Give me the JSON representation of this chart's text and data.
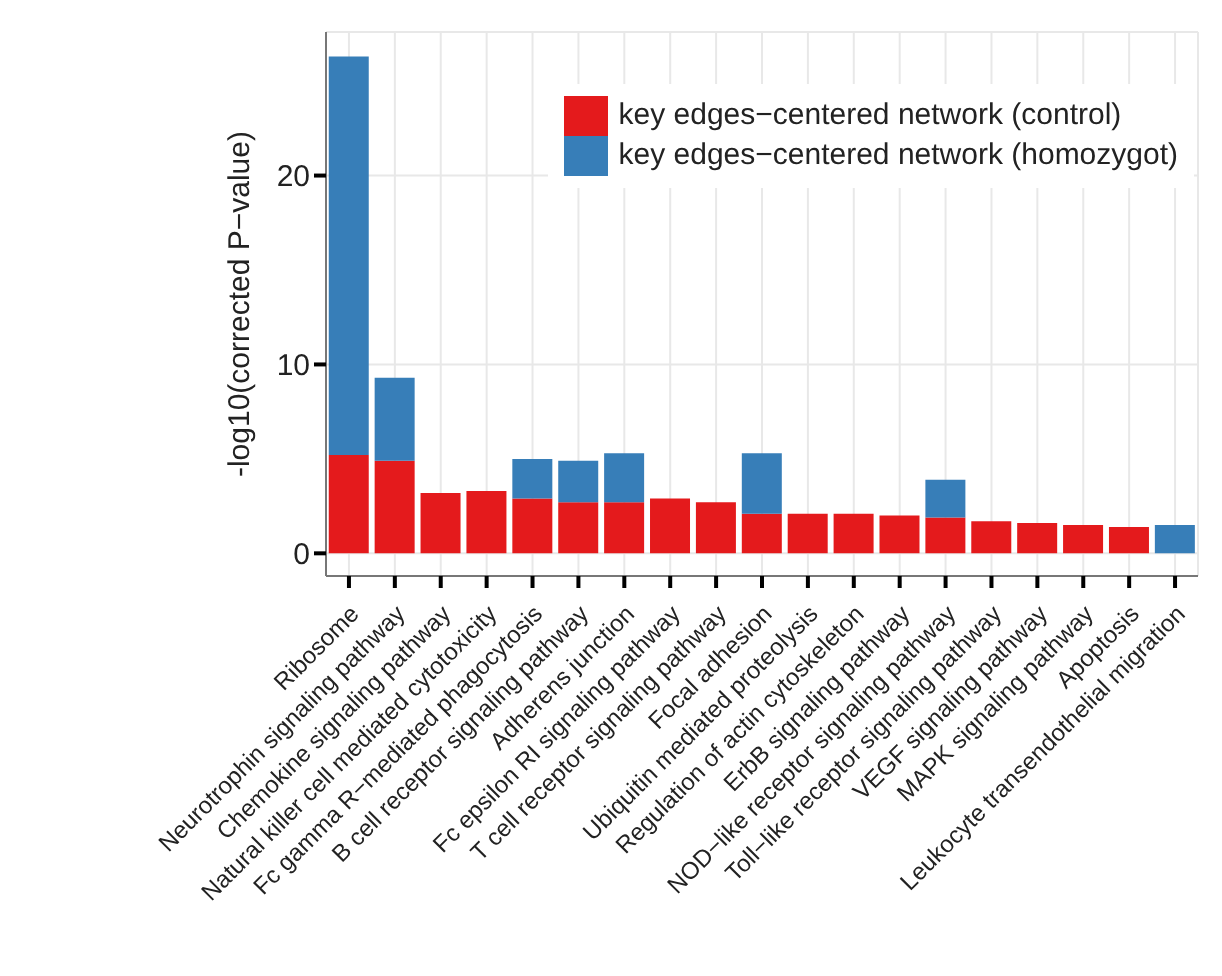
{
  "chart_data": {
    "type": "bar",
    "ylabel": "-log10(corrected P−value)",
    "categories": [
      "Ribosome",
      "Neurotrophin signaling pathway",
      "Chemokine signaling pathway",
      "Natural killer cell mediated cytotoxicity",
      "Fc gamma R−mediated phagocytosis",
      "B cell receptor signaling pathway",
      "Adherens junction",
      "Fc epsilon RI signaling pathway",
      "T cell receptor signaling pathway",
      "Focal adhesion",
      "Ubiquitin mediated proteolysis",
      "Regulation of actin cytoskeleton",
      "ErbB signaling pathway",
      "NOD−like receptor signaling pathway",
      "Toll−like receptor signaling pathway",
      "VEGF signaling pathway",
      "MAPK signaling pathway",
      "Apoptosis",
      "Leukocyte transendothelial migration"
    ],
    "series": [
      {
        "name": "key edges−centered network (control)",
        "color": "#e41a1c",
        "values": [
          5.2,
          4.9,
          3.2,
          3.3,
          2.9,
          2.7,
          2.7,
          2.9,
          2.7,
          2.1,
          2.1,
          2.1,
          2.0,
          1.9,
          1.7,
          1.6,
          1.5,
          1.4,
          0
        ]
      },
      {
        "name": "key edges−centered network (homozygot)",
        "color": "#377eb8",
        "values": [
          21.1,
          4.4,
          0,
          0,
          2.1,
          2.2,
          2.6,
          0,
          0,
          3.2,
          0,
          0,
          0,
          2.0,
          0,
          0,
          0,
          0,
          1.5
        ]
      }
    ],
    "stacked": true,
    "ylim": [
      -1.2,
      27.6
    ],
    "yticks": [
      0,
      10,
      20
    ],
    "grid": true,
    "legend": "top right"
  }
}
